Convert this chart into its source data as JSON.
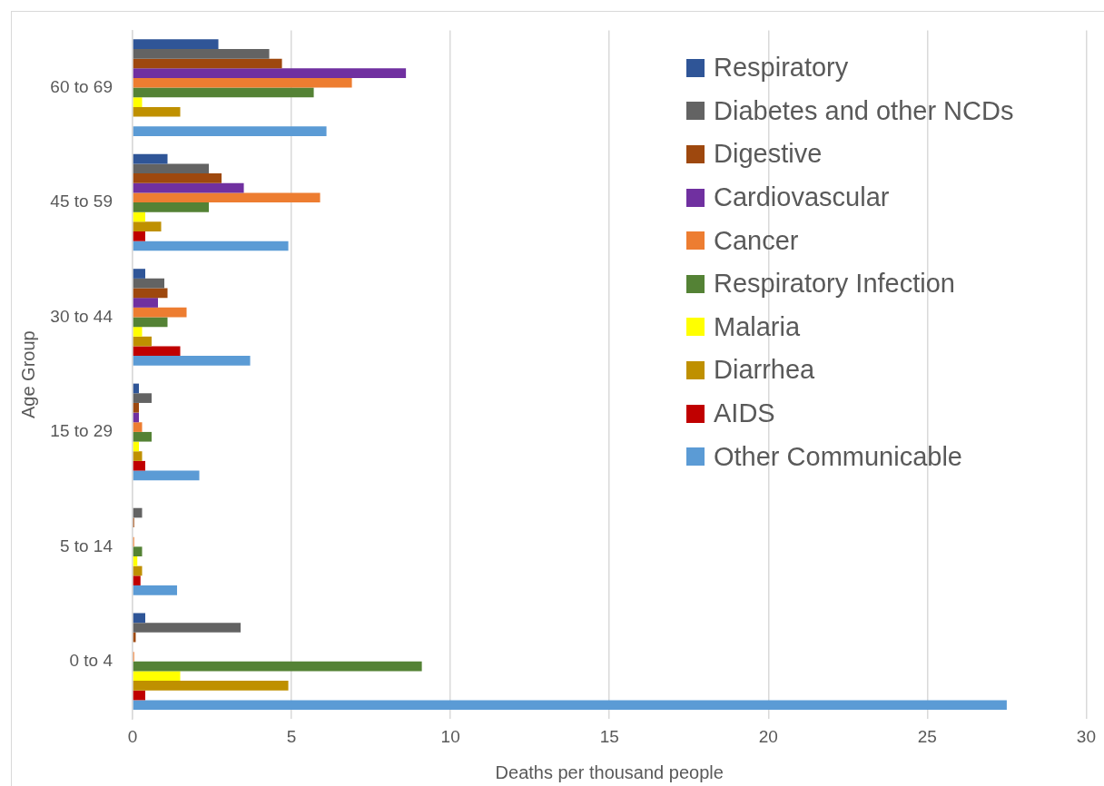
{
  "chart_data": {
    "type": "bar",
    "orientation": "horizontal",
    "xlabel": "Deaths per thousand people",
    "ylabel": "Age Group",
    "categories": [
      "60 to 69",
      "45 to 59",
      "30 to 44",
      "15 to 29",
      "5 to 14",
      "0 to 4"
    ],
    "series": [
      {
        "name": "Respiratory",
        "color": "#2f5597",
        "values": [
          2.7,
          1.1,
          0.4,
          0.2,
          null,
          0.4
        ]
      },
      {
        "name": "Diabetes and other NCDs",
        "color": "#636363",
        "values": [
          4.3,
          2.4,
          1.0,
          0.6,
          0.3,
          3.4
        ]
      },
      {
        "name": "Digestive",
        "color": "#9e480e",
        "values": [
          4.7,
          2.8,
          1.1,
          0.2,
          0.05,
          0.1
        ]
      },
      {
        "name": "Cardiovascular",
        "color": "#7030a0",
        "values": [
          8.6,
          3.5,
          0.8,
          0.2,
          null,
          null
        ]
      },
      {
        "name": "Cancer",
        "color": "#ed7d31",
        "values": [
          6.9,
          5.9,
          1.7,
          0.3,
          0.05,
          0.05
        ]
      },
      {
        "name": "Respiratory Infection",
        "color": "#548235",
        "values": [
          5.7,
          2.4,
          1.1,
          0.6,
          0.3,
          9.1
        ]
      },
      {
        "name": "Malaria",
        "color": "#ffff00",
        "values": [
          0.3,
          0.4,
          0.3,
          0.2,
          0.15,
          1.5
        ]
      },
      {
        "name": "Diarrhea",
        "color": "#bf9000",
        "values": [
          1.5,
          0.9,
          0.6,
          0.3,
          0.3,
          4.9
        ]
      },
      {
        "name": "AIDS",
        "color": "#c00000",
        "values": [
          null,
          0.4,
          1.5,
          0.4,
          0.25,
          0.4
        ]
      },
      {
        "name": "Other Communicable",
        "color": "#5b9bd5",
        "values": [
          6.1,
          4.9,
          3.7,
          2.1,
          1.4,
          27.5
        ]
      }
    ],
    "xlim": [
      0,
      30
    ],
    "xticks": [
      0,
      5,
      10,
      15,
      20,
      25,
      30
    ],
    "grid": "x",
    "legend": "top right"
  }
}
